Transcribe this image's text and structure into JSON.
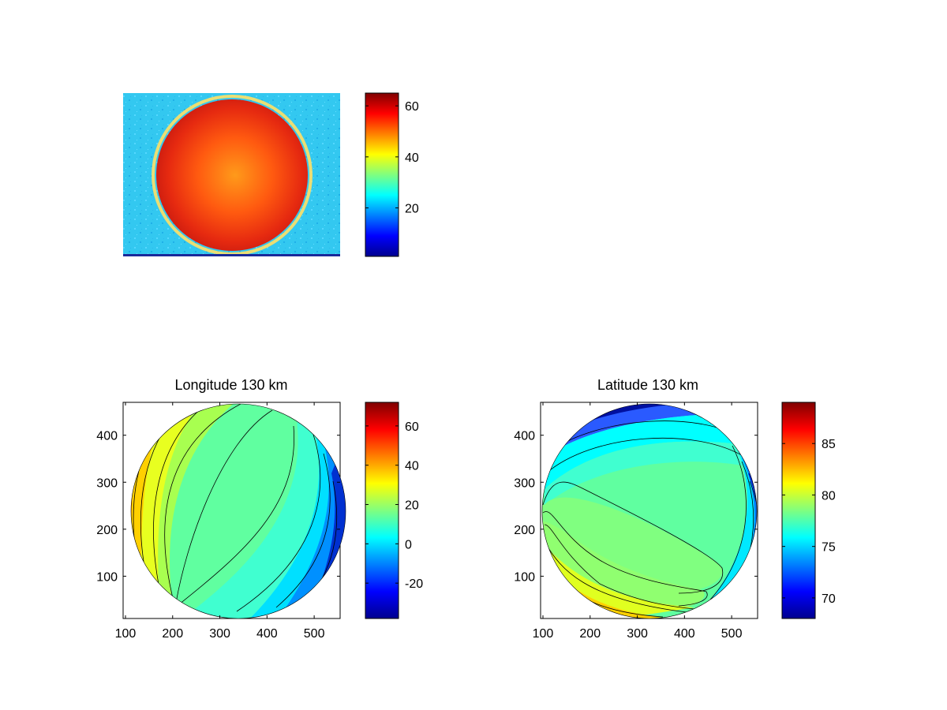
{
  "chart_data": [
    {
      "type": "heatmap",
      "title": "",
      "xlabel": "",
      "ylabel": "",
      "axes_visible": false,
      "colormap": "jet",
      "colorbar": {
        "range": [
          1,
          65
        ],
        "ticks": [
          20,
          40,
          60
        ]
      },
      "description_values": {
        "disk_level": 58,
        "center_level": 47,
        "background_level": 27
      }
    },
    {
      "type": "heatmap",
      "title": "Longitude 130 km",
      "xlabel": "",
      "ylabel": "",
      "xlim": [
        95,
        555
      ],
      "ylim": [
        10,
        470
      ],
      "xticks": [
        100,
        200,
        300,
        400,
        500
      ],
      "yticks": [
        100,
        200,
        300,
        400
      ],
      "colormap": "jet",
      "colorbar": {
        "range": [
          -38,
          72
        ],
        "ticks": [
          -20,
          0,
          20,
          40,
          60
        ]
      },
      "disk": {
        "center": [
          327,
          239
        ],
        "radius": 228
      },
      "contours": "longitude"
    },
    {
      "type": "heatmap",
      "title": "Latitude 130 km",
      "xlabel": "",
      "ylabel": "",
      "xlim": [
        95,
        555
      ],
      "ylim": [
        10,
        470
      ],
      "xticks": [
        100,
        200,
        300,
        400,
        500
      ],
      "yticks": [
        100,
        200,
        300,
        400
      ],
      "colormap": "jet",
      "colorbar": {
        "range": [
          68,
          89
        ],
        "ticks": [
          70,
          75,
          80,
          85
        ]
      },
      "disk": {
        "center": [
          327,
          239
        ],
        "radius": 228
      },
      "contours": "latitude"
    }
  ]
}
